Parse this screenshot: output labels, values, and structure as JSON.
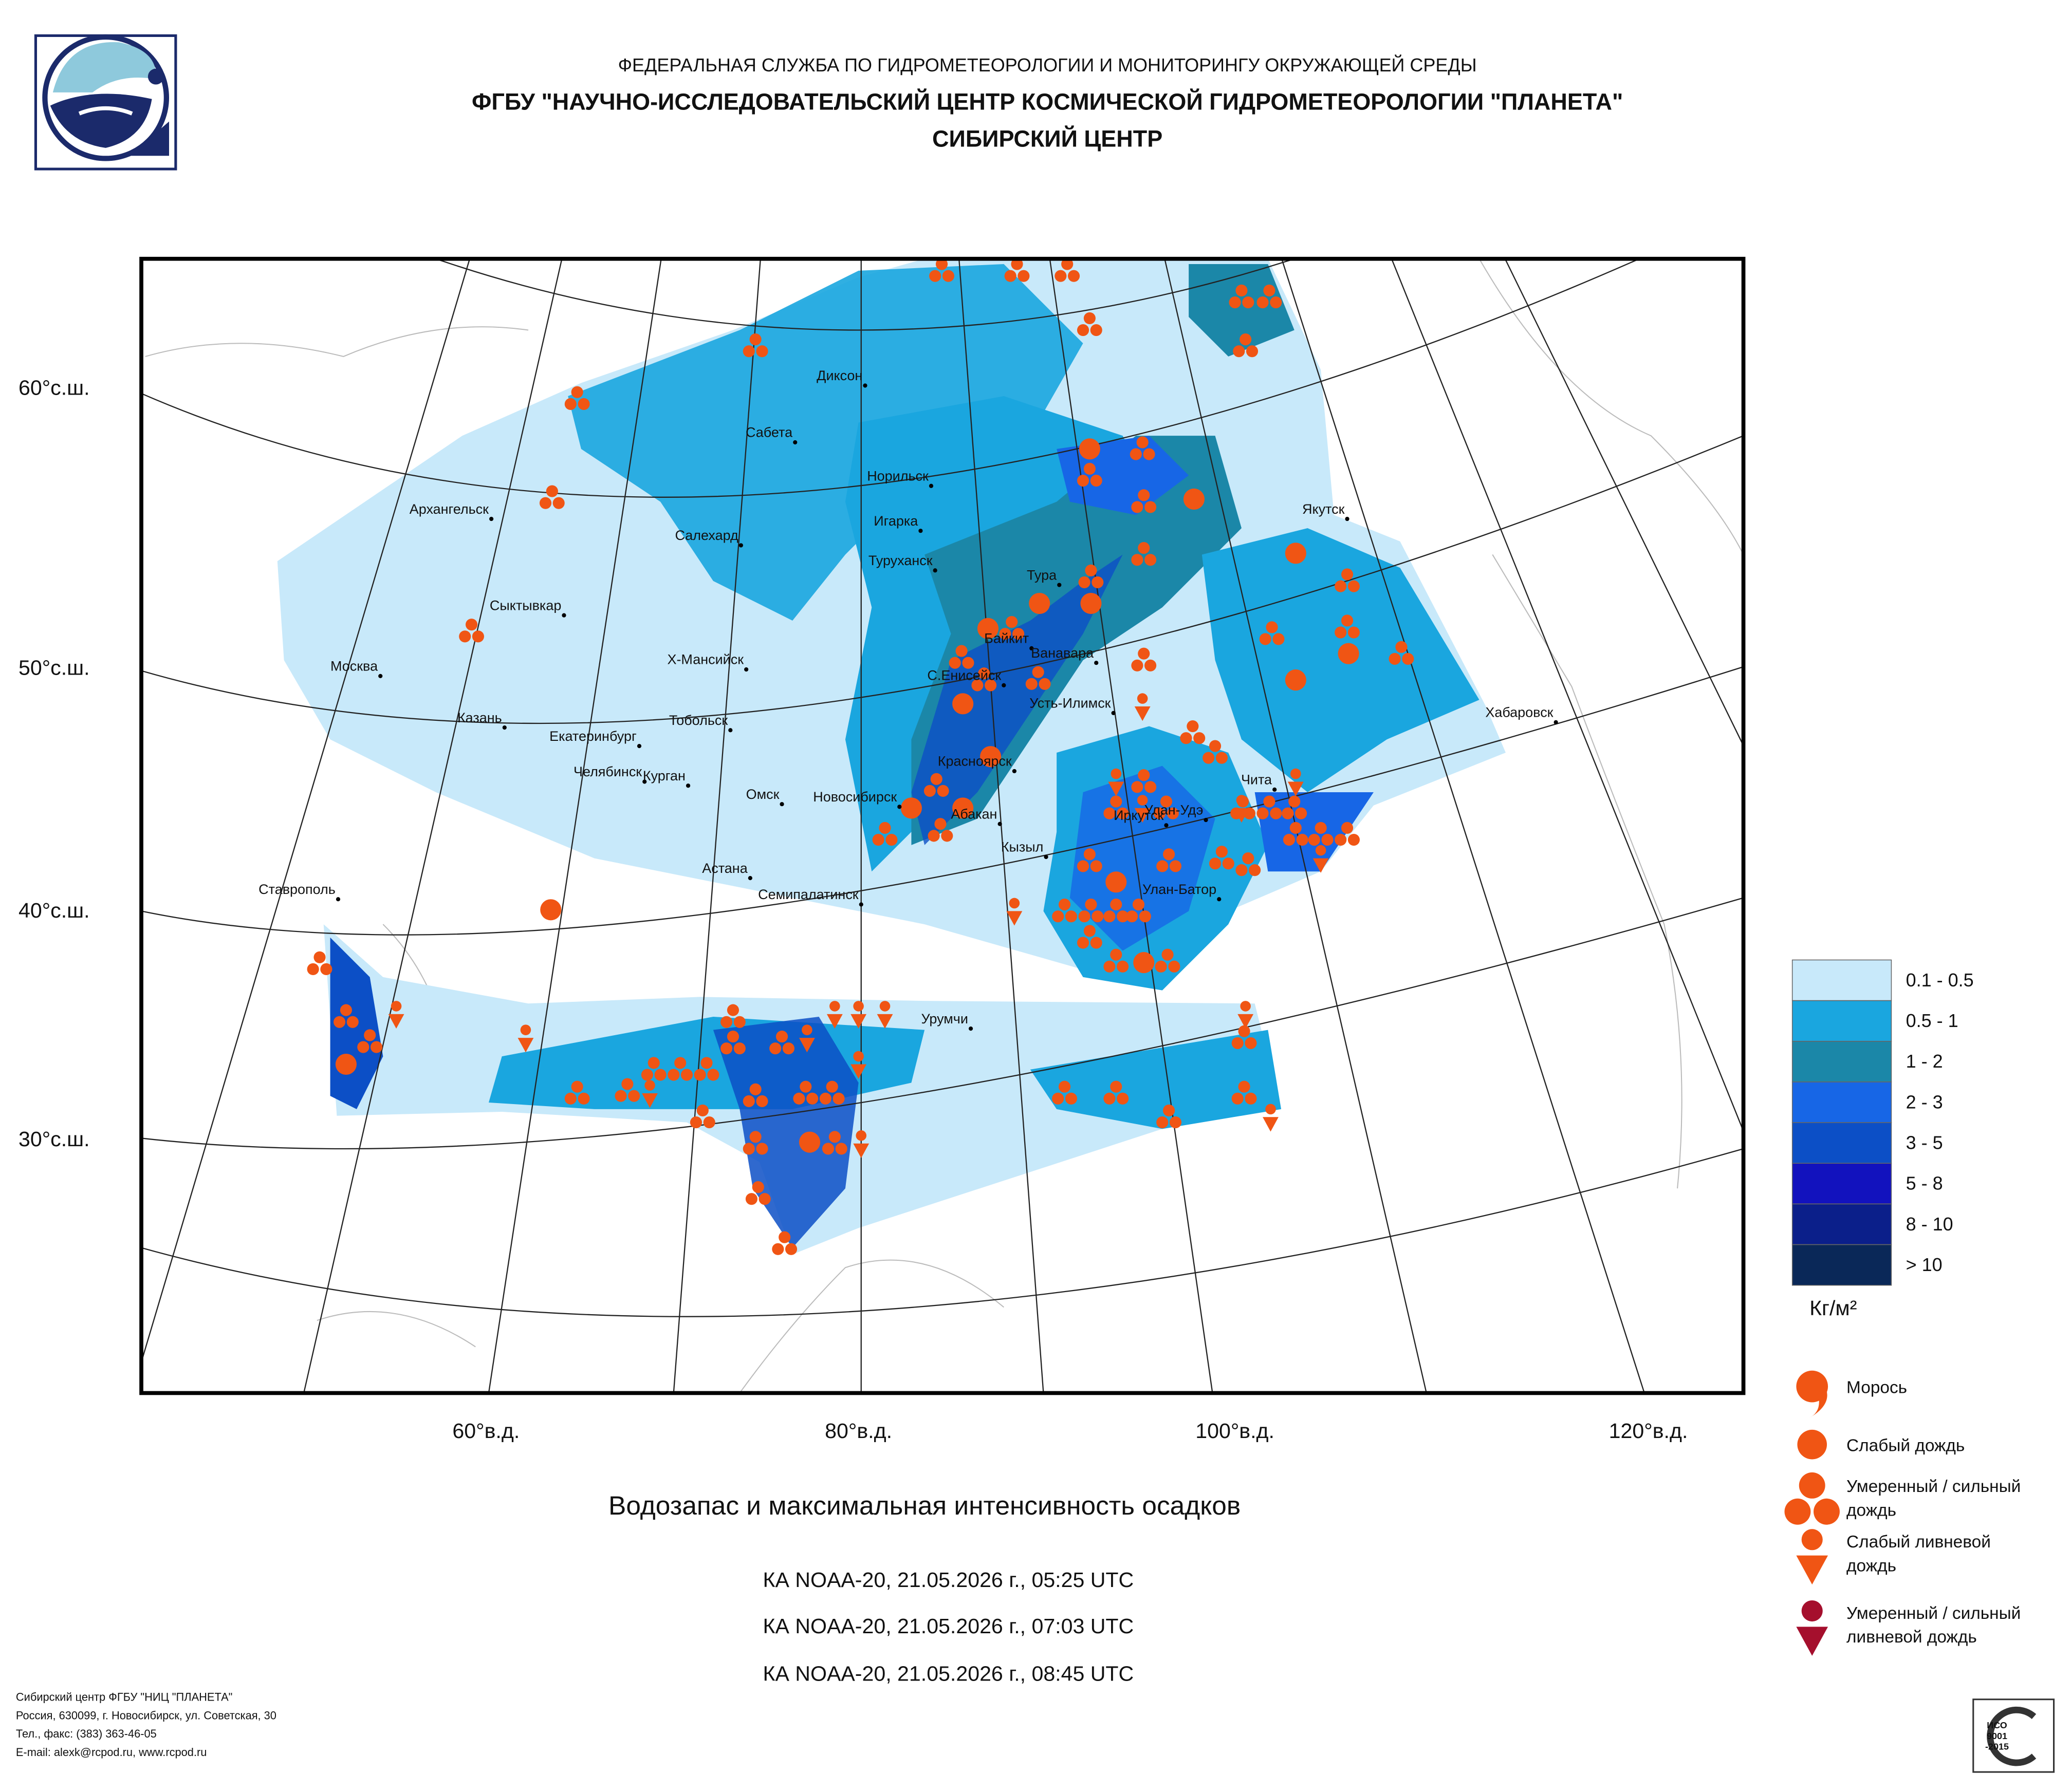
{
  "header": {
    "lines": [
      "ФЕДЕРАЛЬНАЯ СЛУЖБА ПО ГИДРОМЕТЕОРОЛОГИИ И МОНИТОРИНГУ ОКРУЖАЮЩЕЙ СРЕДЫ",
      "ФГБУ \"НАУЧНО-ИССЛЕДОВАТЕЛЬСКИЙ ЦЕНТР КОСМИЧЕСКОЙ ГИДРОМЕТЕОРОЛОГИИ \"ПЛАНЕТА\"",
      "СИБИРСКИЙ ЦЕНТР"
    ]
  },
  "map": {
    "latitude_labels": [
      "60°с.ш.",
      "50°с.ш.",
      "40°с.ш.",
      "30°с.ш."
    ],
    "longitude_labels": [
      "60°в.д.",
      "80°в.д.",
      "100°в.д.",
      "120°в.д."
    ],
    "cities": [
      "Диксон",
      "Сабета",
      "Норильск",
      "Игарка",
      "Туруханск",
      "Архангельск",
      "Салехард",
      "Сыктывкар",
      "Тура",
      "Байкит",
      "Ванавара",
      "Москва",
      "Х-Мансийск",
      "С.Енисейск",
      "Усть-Илимск",
      "Казань",
      "Екатеринбург",
      "Тобольск",
      "Челябинск",
      "Курган",
      "Омск",
      "Новосибирск",
      "Красноярск",
      "Абакан",
      "Кызыл",
      "Иркутск",
      "Улан-Удэ",
      "Чита",
      "Якутск",
      "Хабаровск",
      "Астана",
      "Семипалатинск",
      "Улан-Батор",
      "Ставрополь",
      "Урумчи"
    ]
  },
  "legend": {
    "water_content": {
      "unit": "Кг/м²",
      "classes": [
        {
          "label": "0.1 - 0.5",
          "color": "#c8e9fa"
        },
        {
          "label": "0.5 - 1",
          "color": "#1aa6df"
        },
        {
          "label": "1 - 2",
          "color": "#1b87a8"
        },
        {
          "label": "2 - 3",
          "color": "#1766e6"
        },
        {
          "label": "3 - 5",
          "color": "#0c4fc6"
        },
        {
          "label": "5 - 8",
          "color": "#1212be"
        },
        {
          "label": "8 - 10",
          "color": "#0b1f8a"
        },
        {
          "label": "> 10",
          "color": "#0a2858"
        }
      ]
    },
    "precipitation": [
      {
        "lines": [
          "Морось"
        ],
        "color": "#f05514"
      },
      {
        "lines": [
          "Слабый дождь"
        ],
        "color": "#f05514"
      },
      {
        "lines": [
          "Умеренный / сильный",
          "дождь"
        ],
        "color": "#f05514"
      },
      {
        "lines": [
          "Слабый ливневой",
          "дождь"
        ],
        "color": "#f05514"
      },
      {
        "lines": [
          "Умеренный / сильный",
          "ливневой дождь"
        ],
        "color": "#a50f2d"
      }
    ]
  },
  "title": "Водозапас и максимальная интенсивность осадков",
  "passes": [
    "КА NOAA-20, 21.05.2026 г., 05:25 UTC",
    "КА NOAA-20, 21.05.2026 г., 07:03 UTC",
    "КА NOAA-20, 21.05.2026 г., 08:45 UTC"
  ],
  "footer": [
    "Сибирский центр ФГБУ \"НИЦ \"ПЛАНЕТА\"",
    "Россия, 630099, г. Новосибирск, ул. Советская, 30",
    "Тел., факс: (383) 363-46-05",
    "E-mail: alexk@rcpod.ru, www.rcpod.ru"
  ],
  "badge": [
    "ИСО",
    "9001",
    "-2015"
  ]
}
